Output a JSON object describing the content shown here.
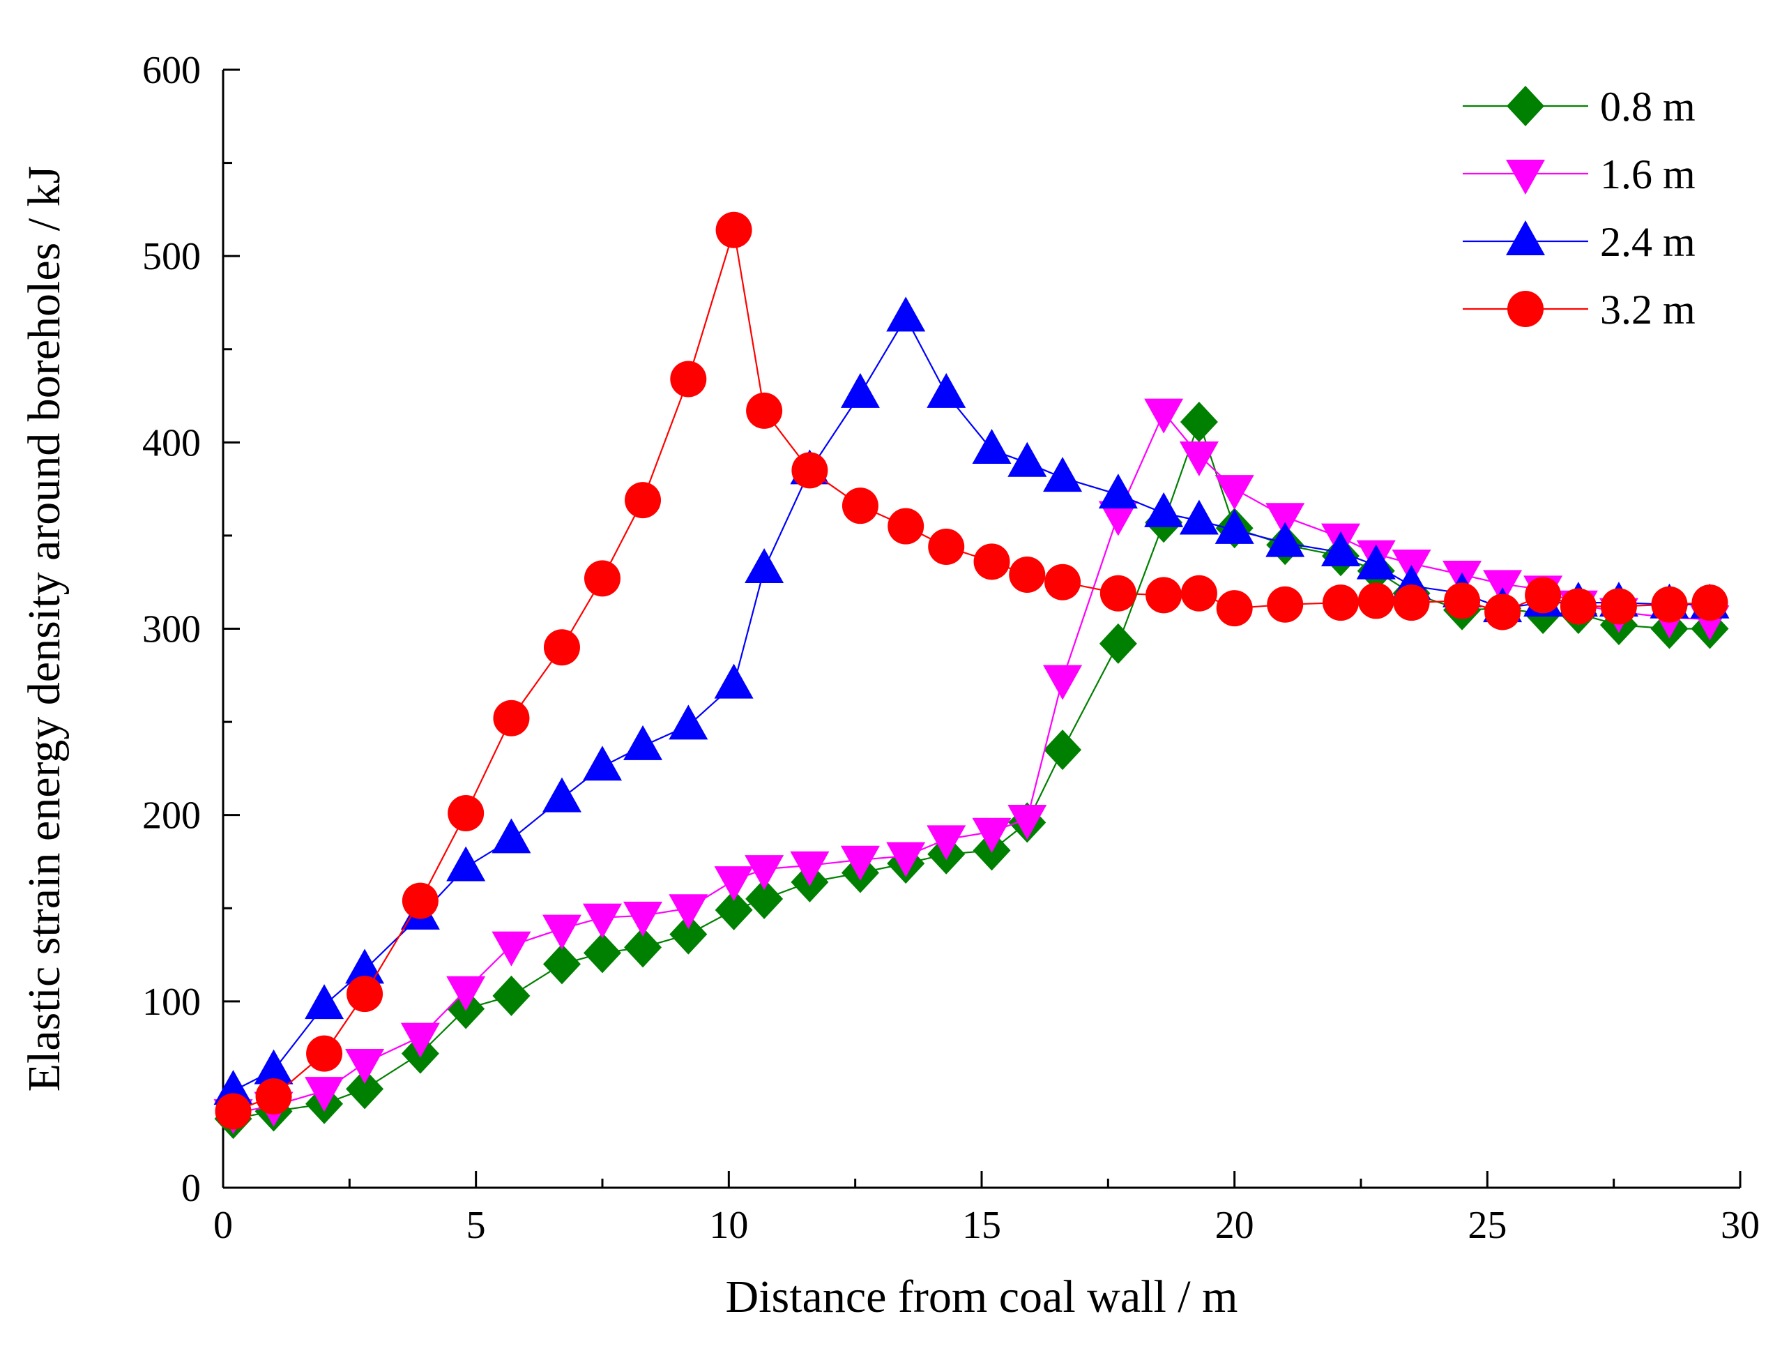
{
  "chart_data": {
    "type": "line",
    "title": "",
    "xlabel": "Distance from coal wall / m",
    "ylabel": "Elastic strain energy density around boreholes / kJ",
    "xlim": [
      0,
      30
    ],
    "ylim": [
      0,
      600
    ],
    "xticks": [
      0,
      5,
      10,
      15,
      20,
      25,
      30
    ],
    "yticks": [
      0,
      100,
      200,
      300,
      400,
      500,
      600
    ],
    "grid": false,
    "legend_position": "top-right",
    "series": [
      {
        "name": "0.8 m",
        "color": "#008000",
        "marker": "diamond",
        "x": [
          0.2,
          1.0,
          2.0,
          2.8,
          3.9,
          4.8,
          5.7,
          6.7,
          7.5,
          8.3,
          9.2,
          10.1,
          10.7,
          11.6,
          12.6,
          13.5,
          14.3,
          15.2,
          15.9,
          16.6,
          17.7,
          18.6,
          19.3,
          20.0,
          21.0,
          22.1,
          22.8,
          23.5,
          24.5,
          25.3,
          26.1,
          26.8,
          27.6,
          28.6,
          29.4
        ],
        "y": [
          37,
          41,
          45,
          53,
          72,
          96,
          103,
          120,
          126,
          129,
          136,
          149,
          155,
          164,
          169,
          174,
          179,
          181,
          196,
          235,
          292,
          357,
          411,
          354,
          345,
          339,
          331,
          319,
          310,
          311,
          308,
          308,
          302,
          300,
          300
        ]
      },
      {
        "name": "1.6 m",
        "color": "#ff00ff",
        "marker": "triangle-down",
        "x": [
          0.2,
          1.0,
          2.0,
          2.8,
          3.9,
          4.8,
          5.7,
          6.7,
          7.5,
          8.3,
          9.2,
          10.1,
          10.7,
          11.6,
          12.6,
          13.5,
          14.3,
          15.2,
          15.9,
          16.6,
          17.7,
          18.6,
          19.3,
          20.0,
          21.0,
          22.1,
          22.8,
          23.5,
          24.5,
          25.3,
          26.1,
          26.8,
          27.6,
          28.6,
          29.4
        ],
        "y": [
          40,
          44,
          52,
          67,
          81,
          106,
          130,
          139,
          145,
          146,
          150,
          165,
          171,
          173,
          176,
          178,
          187,
          191,
          198,
          273,
          361,
          416,
          393,
          375,
          360,
          349,
          340,
          335,
          329,
          324,
          321,
          313,
          309,
          306,
          305
        ]
      },
      {
        "name": "2.4 m",
        "color": "#0000ff",
        "marker": "triangle-up",
        "x": [
          0.2,
          1.0,
          2.0,
          2.8,
          3.9,
          4.8,
          5.7,
          6.7,
          7.5,
          8.3,
          9.2,
          10.1,
          10.7,
          11.6,
          12.6,
          13.5,
          14.3,
          15.2,
          15.9,
          16.6,
          17.7,
          18.6,
          19.3,
          20.0,
          21.0,
          22.1,
          22.8,
          23.5,
          24.5,
          25.3,
          26.1,
          26.8,
          27.6,
          28.6,
          29.4
        ],
        "y": [
          52,
          63,
          98,
          117,
          146,
          172,
          187,
          209,
          226,
          237,
          248,
          270,
          332,
          385,
          426,
          467,
          426,
          396,
          389,
          381,
          372,
          362,
          358,
          353,
          346,
          341,
          334,
          323,
          319,
          311,
          314,
          314,
          314,
          313,
          313
        ]
      },
      {
        "name": "3.2 m",
        "color": "#ff0000",
        "marker": "circle",
        "x": [
          0.2,
          1.0,
          2.0,
          2.8,
          3.9,
          4.8,
          5.7,
          6.7,
          7.5,
          8.3,
          9.2,
          10.1,
          10.7,
          11.6,
          12.6,
          13.5,
          14.3,
          15.2,
          15.9,
          16.6,
          17.7,
          18.6,
          19.3,
          20.0,
          21.0,
          22.1,
          22.8,
          23.5,
          24.5,
          25.3,
          26.1,
          26.8,
          27.6,
          28.6,
          29.4
        ],
        "y": [
          41,
          49,
          72,
          104,
          154,
          201,
          252,
          290,
          327,
          369,
          434,
          514,
          417,
          385,
          366,
          355,
          344,
          336,
          329,
          325,
          319,
          318,
          319,
          311,
          313,
          314,
          315,
          314,
          315,
          309,
          318,
          312,
          312,
          313,
          314
        ]
      }
    ]
  }
}
